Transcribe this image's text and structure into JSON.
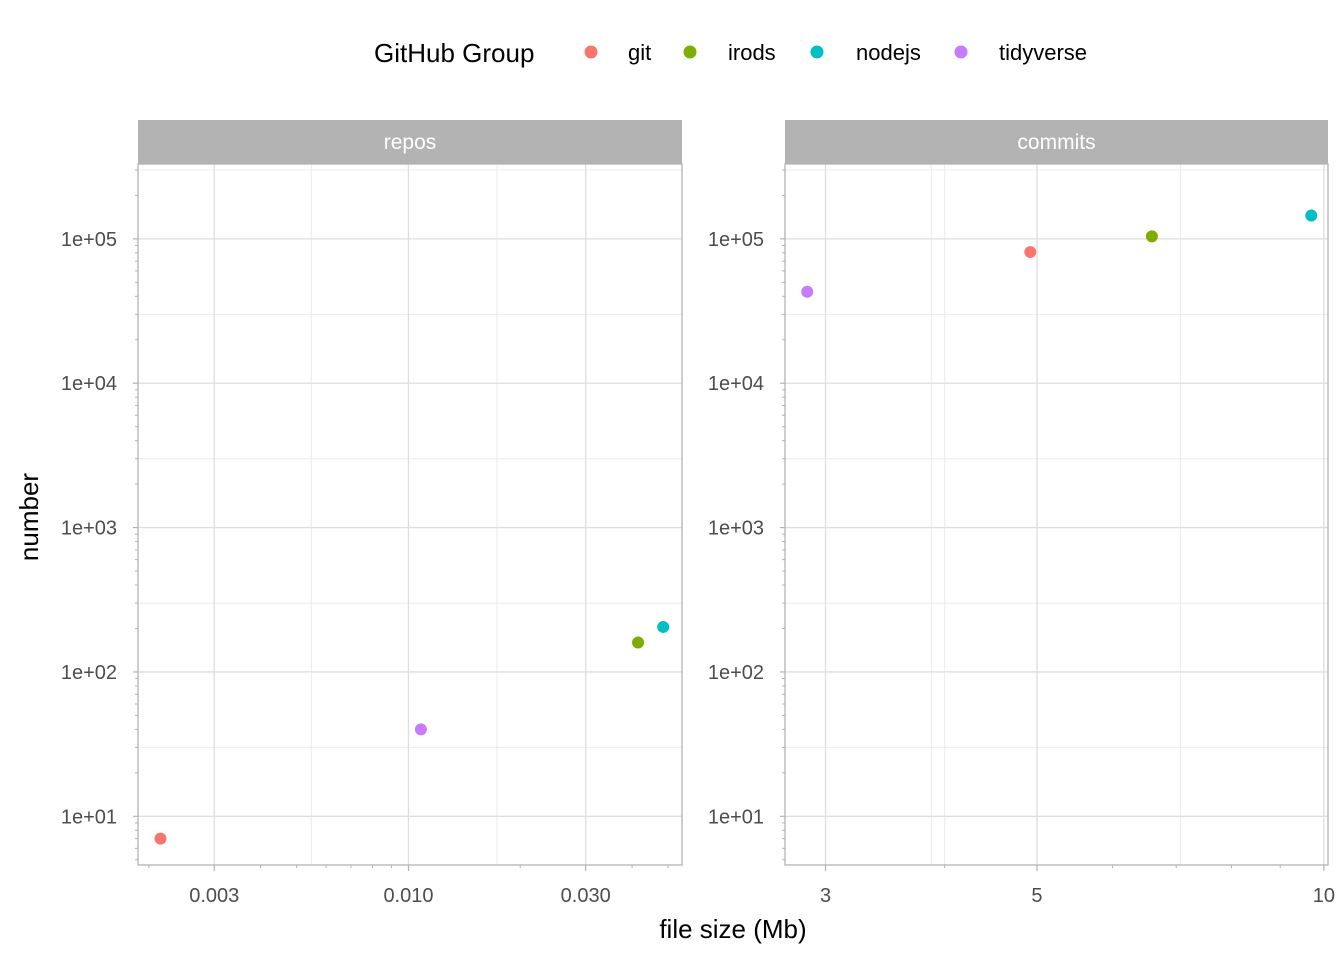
{
  "chart_data": {
    "type": "scatter",
    "legend": {
      "title": "GitHub Group",
      "position": "top",
      "entries": [
        {
          "name": "git",
          "color": "#F8766D"
        },
        {
          "name": "irods",
          "color": "#7CAE00"
        },
        {
          "name": "nodejs",
          "color": "#00BFC4"
        },
        {
          "name": "tidyverse",
          "color": "#C77CFF"
        }
      ]
    },
    "xlabel": "file size (Mb)",
    "ylabel": "number",
    "y_scale": "log",
    "x_scale": "log",
    "grid": true,
    "facets": [
      {
        "label": "repos",
        "xlim": [
          0.00187,
          0.0545
        ],
        "ylim": [
          4.6,
          330000
        ],
        "x_ticks": [
          {
            "value": 0.003,
            "label": "0.003"
          },
          {
            "value": 0.01,
            "label": "0.010"
          },
          {
            "value": 0.03,
            "label": "0.030"
          }
        ],
        "y_ticks": [
          {
            "value": 10,
            "label": "1e+01"
          },
          {
            "value": 100,
            "label": "1e+02"
          },
          {
            "value": 1000,
            "label": "1e+03"
          },
          {
            "value": 10000,
            "label": "1e+04"
          },
          {
            "value": 100000,
            "label": "1e+05"
          }
        ],
        "points": [
          {
            "group": "git",
            "x": 0.00215,
            "y": 7
          },
          {
            "group": "tidyverse",
            "x": 0.0108,
            "y": 40
          },
          {
            "group": "irods",
            "x": 0.0415,
            "y": 160
          },
          {
            "group": "nodejs",
            "x": 0.0485,
            "y": 205
          }
        ]
      },
      {
        "label": "commits",
        "xlim": [
          2.72,
          10.1
        ],
        "ylim": [
          4.6,
          330000
        ],
        "x_ticks": [
          {
            "value": 3,
            "label": "3"
          },
          {
            "value": 5,
            "label": "5"
          },
          {
            "value": 10,
            "label": "10"
          }
        ],
        "y_ticks": [
          {
            "value": 10,
            "label": "1e+01"
          },
          {
            "value": 100,
            "label": "1e+02"
          },
          {
            "value": 1000,
            "label": "1e+03"
          },
          {
            "value": 10000,
            "label": "1e+04"
          },
          {
            "value": 100000,
            "label": "1e+05"
          }
        ],
        "points": [
          {
            "group": "tidyverse",
            "x": 2.87,
            "y": 43000
          },
          {
            "group": "git",
            "x": 4.92,
            "y": 81000
          },
          {
            "group": "irods",
            "x": 6.6,
            "y": 104000
          },
          {
            "group": "nodejs",
            "x": 9.7,
            "y": 145000
          }
        ]
      }
    ]
  }
}
